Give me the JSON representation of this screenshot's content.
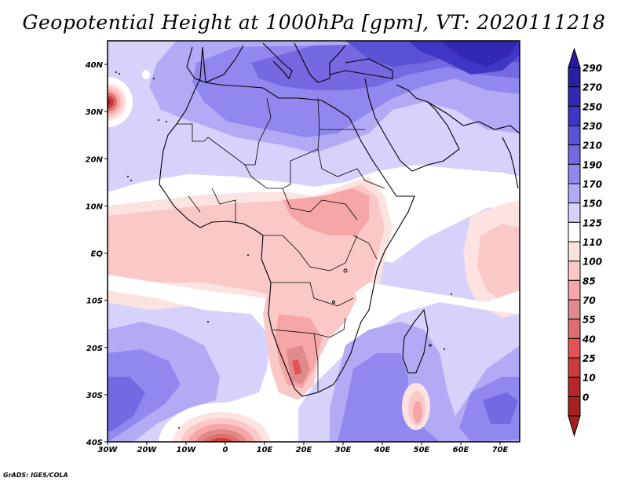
{
  "title": "Geopotential Height at 1000hPa [gpm], VT: 2020111218",
  "footer": "GrADS: IGES/COLA",
  "chart_data": {
    "type": "heatmap",
    "title": "Geopotential Height at 1000hPa [gpm], VT: 2020111218",
    "variable": "Geopotential Height at 1000hPa",
    "units": "gpm",
    "valid_time": "2020111218",
    "xlabel": "",
    "ylabel": "",
    "xlim": [
      -30,
      75
    ],
    "ylim": [
      -40,
      45
    ],
    "x_ticks": [
      {
        "value": -30,
        "label": "30W"
      },
      {
        "value": -20,
        "label": "20W"
      },
      {
        "value": -10,
        "label": "10W"
      },
      {
        "value": 0,
        "label": "0"
      },
      {
        "value": 10,
        "label": "10E"
      },
      {
        "value": 20,
        "label": "20E"
      },
      {
        "value": 30,
        "label": "30E"
      },
      {
        "value": 40,
        "label": "40E"
      },
      {
        "value": 50,
        "label": "50E"
      },
      {
        "value": 60,
        "label": "60E"
      },
      {
        "value": 70,
        "label": "70E"
      }
    ],
    "y_ticks": [
      {
        "value": 40,
        "label": "40N"
      },
      {
        "value": 30,
        "label": "30N"
      },
      {
        "value": 20,
        "label": "20N"
      },
      {
        "value": 10,
        "label": "10N"
      },
      {
        "value": 0,
        "label": "EQ"
      },
      {
        "value": -10,
        "label": "10S"
      },
      {
        "value": -20,
        "label": "20S"
      },
      {
        "value": -30,
        "label": "30S"
      },
      {
        "value": -40,
        "label": "40S"
      }
    ],
    "colorbar": {
      "levels": [
        290,
        270,
        250,
        230,
        210,
        190,
        170,
        150,
        125,
        110,
        100,
        85,
        70,
        55,
        40,
        25,
        10,
        0
      ],
      "colors": [
        "#2a1f9e",
        "#3328b4",
        "#3e36c4",
        "#5a52d4",
        "#7469e0",
        "#9088ee",
        "#b3aaf6",
        "#d6d2fb",
        "#ffffff",
        "#fde2e2",
        "#fbc8c8",
        "#f6a6a6",
        "#e08b8b",
        "#e06e6e",
        "#e35454",
        "#cf3b3b",
        "#b82727",
        "#a82020"
      ],
      "above_color": "#2a1a9a",
      "below_color": "#a51f1f",
      "extend": "both"
    },
    "features": [
      {
        "name": "Lows over Europe / Mediterranean / Middle East",
        "approx_value_range": [
          190,
          290
        ]
      },
      {
        "name": "High cell near Madeira (32N 30W)",
        "approx_value_range": [
          0,
          85
        ]
      },
      {
        "name": "Sahel / Central Africa",
        "approx_value_range": [
          70,
          110
        ]
      },
      {
        "name": "Southern Africa high (Namibia/South Africa)",
        "approx_value_range": [
          40,
          85
        ]
      },
      {
        "name": "South Atlantic anticyclone (40S 0E)",
        "approx_value_range": [
          0,
          55
        ]
      },
      {
        "name": "Southern Ocean lows",
        "approx_value_range": [
          190,
          230
        ]
      },
      {
        "name": "Cell south of Madagascar",
        "approx_value_range": [
          70,
          100
        ]
      }
    ],
    "grid": false,
    "legend": "right"
  }
}
